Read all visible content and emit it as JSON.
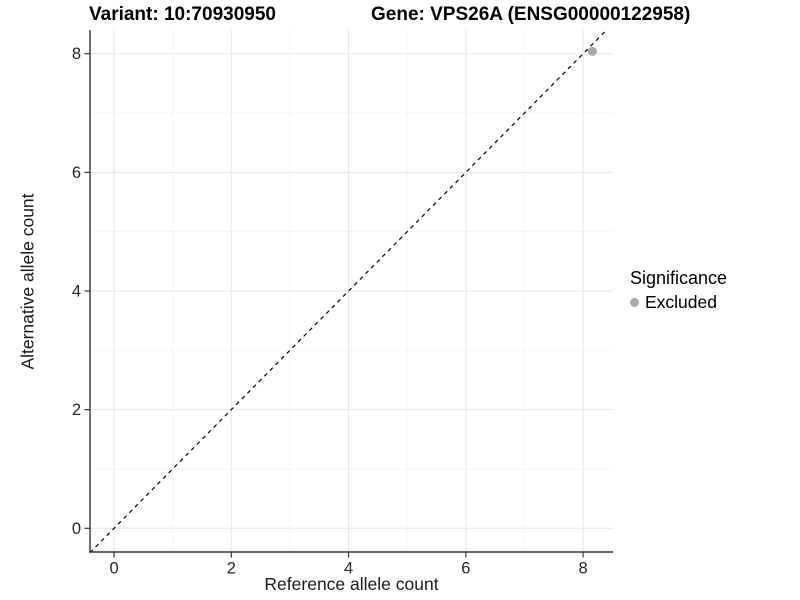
{
  "chart_data": {
    "type": "scatter",
    "title_variant": "Variant: 10:70930950",
    "title_gene": "Gene: VPS26A (ENSG00000122958)",
    "xlabel": "Reference allele count",
    "ylabel": "Alternative allele count",
    "x_ticks": [
      0,
      2,
      4,
      6,
      8
    ],
    "y_ticks": [
      0,
      2,
      4,
      6,
      8
    ],
    "x_minor_gridlines": [
      1,
      3,
      5,
      7
    ],
    "y_minor_gridlines": [
      1,
      3,
      5,
      7
    ],
    "xlim": [
      -0.41,
      8.51
    ],
    "ylim": [
      -0.4,
      8.4
    ],
    "grid": true,
    "identity_line": {
      "slope": 1,
      "intercept": 0,
      "style": "dashed",
      "color": "#000000"
    },
    "series": [
      {
        "name": "Excluded",
        "color": "#aaaaaa",
        "points": [
          {
            "x": 8.16,
            "y": 8.04
          }
        ]
      }
    ],
    "legend": {
      "title": "Significance",
      "position": "right",
      "items": [
        {
          "label": "Excluded",
          "color": "#aaaaaa"
        }
      ]
    },
    "colors": {
      "grid_major": "#e6e6e6",
      "grid_minor": "#f4f4f4",
      "axis": "#333333",
      "tick_text": "#262626"
    }
  }
}
